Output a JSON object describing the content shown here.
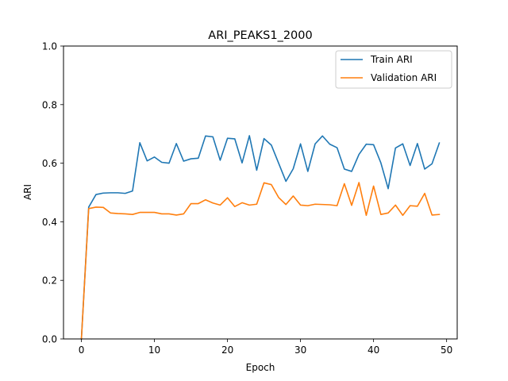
{
  "chart_data": {
    "type": "line",
    "title": "ARI_PEAKS1_2000",
    "xlabel": "Epoch",
    "ylabel": "ARI",
    "xlim": [
      -2.45,
      51.45
    ],
    "ylim": [
      0.0,
      1.0
    ],
    "xticks": [
      0,
      10,
      20,
      30,
      40,
      50
    ],
    "yticks": [
      0.0,
      0.2,
      0.4,
      0.6,
      0.8,
      1.0
    ],
    "xtick_labels": [
      "0",
      "10",
      "20",
      "30",
      "40",
      "50"
    ],
    "ytick_labels": [
      "0.0",
      "0.2",
      "0.4",
      "0.6",
      "0.8",
      "1.0"
    ],
    "grid": false,
    "legend_position": "top-right",
    "x": [
      0,
      1,
      2,
      3,
      4,
      5,
      6,
      7,
      8,
      9,
      10,
      11,
      12,
      13,
      14,
      15,
      16,
      17,
      18,
      19,
      20,
      21,
      22,
      23,
      24,
      25,
      26,
      27,
      28,
      29,
      30,
      31,
      32,
      33,
      34,
      35,
      36,
      37,
      38,
      39,
      40,
      41,
      42,
      43,
      44,
      45,
      46,
      47,
      48,
      49
    ],
    "series": [
      {
        "name": "Train ARI",
        "color": "#1f77b4",
        "values": [
          0.0,
          0.45,
          0.493,
          0.498,
          0.499,
          0.499,
          0.497,
          0.505,
          0.67,
          0.608,
          0.621,
          0.603,
          0.6,
          0.667,
          0.607,
          0.615,
          0.617,
          0.693,
          0.69,
          0.61,
          0.685,
          0.683,
          0.601,
          0.694,
          0.576,
          0.684,
          0.662,
          0.6,
          0.538,
          0.581,
          0.666,
          0.572,
          0.666,
          0.693,
          0.665,
          0.653,
          0.58,
          0.572,
          0.63,
          0.665,
          0.663,
          0.601,
          0.513,
          0.652,
          0.666,
          0.592,
          0.667,
          0.58,
          0.598,
          0.669
        ]
      },
      {
        "name": "Validation ARI",
        "color": "#ff7f0e",
        "values": [
          0.0,
          0.445,
          0.45,
          0.449,
          0.43,
          0.428,
          0.427,
          0.425,
          0.432,
          0.432,
          0.432,
          0.427,
          0.427,
          0.423,
          0.427,
          0.462,
          0.462,
          0.475,
          0.464,
          0.457,
          0.482,
          0.452,
          0.465,
          0.457,
          0.46,
          0.533,
          0.527,
          0.483,
          0.459,
          0.488,
          0.457,
          0.455,
          0.46,
          0.459,
          0.458,
          0.455,
          0.53,
          0.456,
          0.534,
          0.422,
          0.522,
          0.425,
          0.43,
          0.457,
          0.422,
          0.455,
          0.453,
          0.497,
          0.423,
          0.425
        ]
      }
    ]
  }
}
